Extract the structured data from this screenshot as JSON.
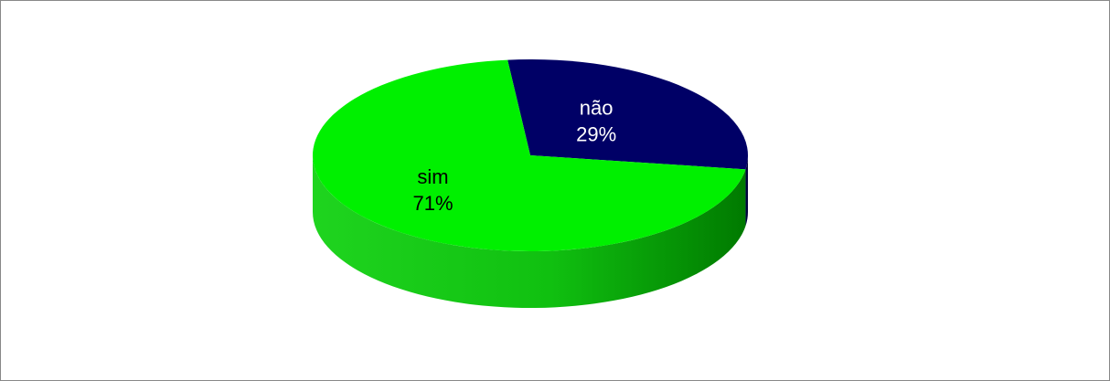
{
  "chart_data": {
    "type": "pie",
    "categories": [
      "não",
      "sim"
    ],
    "values": [
      29,
      71
    ],
    "value_labels": [
      "29%",
      "71%"
    ],
    "colors": [
      "#000066",
      "#00f000"
    ],
    "label_colors": [
      "#ffffff",
      "#000000"
    ]
  }
}
